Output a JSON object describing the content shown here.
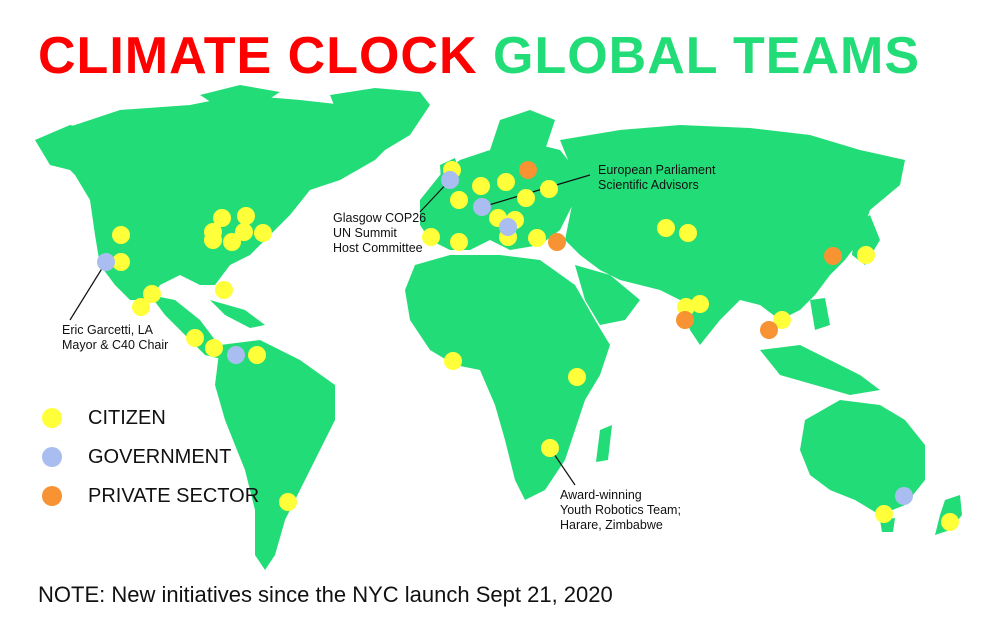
{
  "title": {
    "part1": "CLIMATE CLOCK",
    "part2": "GLOBAL TEAMS"
  },
  "colors": {
    "land": "#22dd77",
    "citizen": "#ffff3a",
    "government": "#a9bdf0",
    "private_sector": "#f79333",
    "title_red": "#ff0000",
    "title_green": "#22dd77"
  },
  "legend": [
    {
      "key": "citizen",
      "label": "CITIZEN",
      "color": "#ffff3a"
    },
    {
      "key": "government",
      "label": "GOVERNMENT",
      "color": "#a9bdf0"
    },
    {
      "key": "private_sector",
      "label": "PRIVATE SECTOR",
      "color": "#f79333"
    }
  ],
  "annotations": {
    "la": {
      "line1": "Eric Garcetti, LA",
      "line2": "Mayor & C40 Chair"
    },
    "glasgow": {
      "line1": "Glasgow COP26",
      "line2": "UN Summit",
      "line3": "Host Committee"
    },
    "eu": {
      "line1": "European Parliament",
      "line2": "Scientific Advisors"
    },
    "harare": {
      "line1": "Award-winning",
      "line2": "Youth Robotics Team;",
      "line3": "Harare, Zimbabwe"
    }
  },
  "note": "NOTE: New initiatives since the NYC launch Sept 21, 2020",
  "markers": {
    "citizen_count": 43,
    "government_count": 6,
    "private_sector_count": 5
  }
}
